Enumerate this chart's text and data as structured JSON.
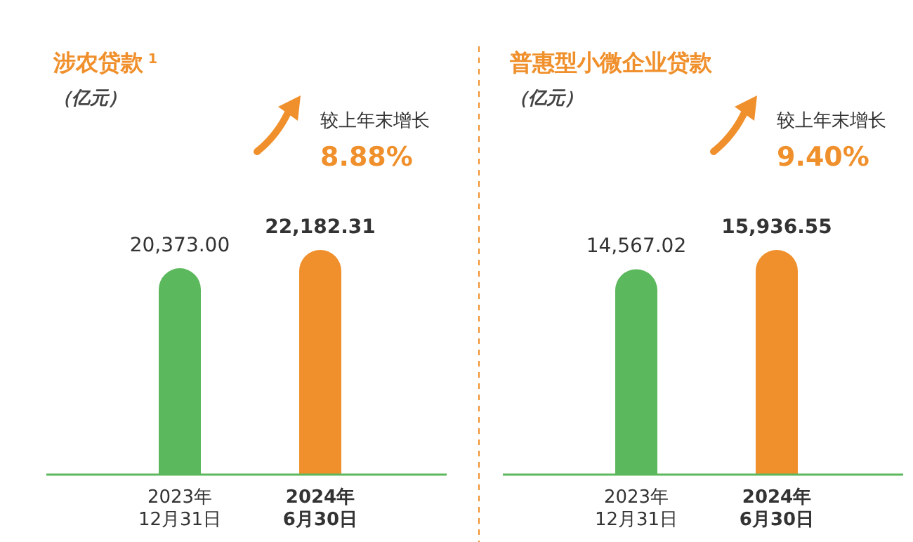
{
  "chart_data": [
    {
      "type": "bar",
      "title": "涉农贷款$^{1}$",
      "subtitle": "（亿元）",
      "categories": [
        "2023年\n12月31日",
        "2024年\n6月30日"
      ],
      "colors": [
        "#5cb85c",
        "#f0902c"
      ],
      "values": [
        20373.0,
        22182.31
      ],
      "value_labels": [
        "20,373.00",
        "22,182.31"
      ],
      "annotations": [
        "较上年末增长",
        "8.88%"
      ]
    },
    {
      "type": "bar",
      "title": "普惠型小微企业贷款",
      "subtitle": "（亿元）",
      "categories": [
        "2023年\n12月31日",
        "2024年\n6月30日"
      ],
      "colors": [
        "#5cb85c",
        "#f0902c"
      ],
      "values": [
        14567.02,
        15936.55
      ],
      "value_labels": [
        "14,567.02",
        "15,936.55"
      ],
      "annotations": [
        "较上年末增长",
        "9.40%"
      ]
    }
  ]
}
